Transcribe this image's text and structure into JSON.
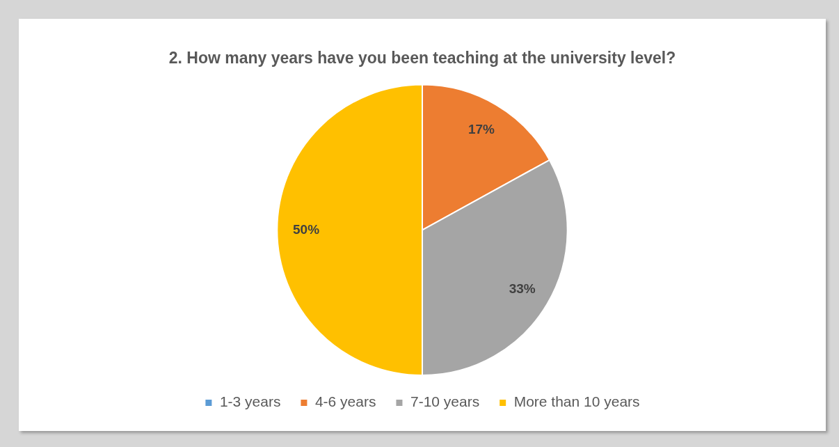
{
  "chart_data": {
    "type": "pie",
    "title": "2. How many years have you been teaching at the university level?",
    "categories": [
      "1-3 years",
      "4-6 years",
      "7-10 years",
      "More than 10 years"
    ],
    "values": [
      0,
      17,
      33,
      50
    ],
    "colors": [
      "#5b9bd5",
      "#ed7d31",
      "#a5a5a5",
      "#ffc000"
    ],
    "value_labels": [
      null,
      "17%",
      "33%",
      "50%"
    ],
    "legend": "bottom"
  }
}
